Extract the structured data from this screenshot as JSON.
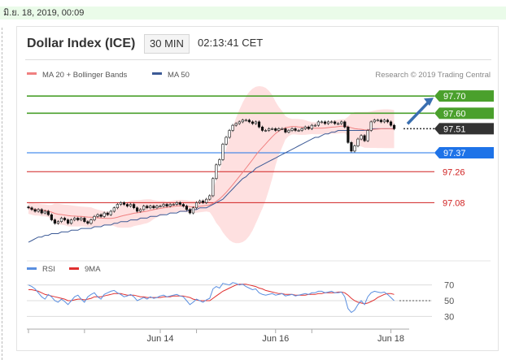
{
  "date_bar": {
    "text": "มิ.ย. 18, 2019, 00:09"
  },
  "header": {
    "title": "Dollar Index (ICE)",
    "interval": "30 MIN",
    "time": "02:13:41 CET"
  },
  "legend": {
    "ma20": "MA 20 + Bollinger Bands",
    "ma50": "MA 50",
    "credit": "Research © 2019 Trading Central"
  },
  "rsi_legend": {
    "rsi": "RSI",
    "ma": "9MA"
  },
  "colors": {
    "ma20": "#f08080",
    "ma50": "#3c5a96",
    "band": "#fdd5d5",
    "green": "#4aa02c",
    "blue": "#1e73e8",
    "red": "#d02020",
    "dark": "#333333",
    "arrow": "#3a6fb0",
    "rsi": "#5a8fe0",
    "rsi_ma": "#e03030"
  },
  "chart_data": {
    "type": "candlestick",
    "x_labels": [
      "Jun 14",
      "Jun 16",
      "Jun 18"
    ],
    "price_ylim": [
      96.77,
      97.8
    ],
    "levels": [
      {
        "label": "97.70",
        "value": 97.7,
        "kind": "resistance"
      },
      {
        "label": "97.60",
        "value": 97.6,
        "kind": "resistance"
      },
      {
        "label": "97.51",
        "value": 97.51,
        "kind": "last"
      },
      {
        "label": "97.37",
        "value": 97.37,
        "kind": "pivot"
      },
      {
        "label": "97.26",
        "value": 97.26,
        "kind": "support"
      },
      {
        "label": "97.08",
        "value": 97.08,
        "kind": "support"
      }
    ],
    "closes": [
      97.05,
      97.04,
      97.03,
      97.04,
      97.02,
      97.03,
      97.01,
      96.98,
      96.96,
      96.97,
      96.99,
      96.98,
      96.96,
      96.98,
      96.99,
      96.98,
      96.99,
      96.97,
      96.96,
      96.98,
      97.0,
      97.01,
      97.0,
      97.02,
      97.01,
      97.03,
      97.05,
      97.07,
      97.08,
      97.07,
      97.06,
      97.07,
      97.05,
      97.03,
      97.04,
      97.06,
      97.05,
      97.06,
      97.05,
      97.06,
      97.06,
      97.07,
      97.06,
      97.07,
      97.07,
      97.08,
      97.07,
      97.06,
      97.04,
      97.02,
      97.05,
      97.08,
      97.09,
      97.08,
      97.1,
      97.12,
      97.22,
      97.3,
      97.33,
      97.42,
      97.46,
      97.5,
      97.53,
      97.54,
      97.55,
      97.56,
      97.56,
      97.55,
      97.54,
      97.55,
      97.52,
      97.5,
      97.5,
      97.51,
      97.51,
      97.5,
      97.51,
      97.51,
      97.49,
      97.5,
      97.51,
      97.5,
      97.5,
      97.51,
      97.52,
      97.51,
      97.53,
      97.53,
      97.55,
      97.55,
      97.54,
      97.55,
      97.55,
      97.54,
      97.54,
      97.55,
      97.52,
      97.43,
      97.38,
      97.41,
      97.45,
      97.47,
      97.44,
      97.5,
      97.55,
      97.56,
      97.56,
      97.55,
      97.56,
      97.55,
      97.53,
      97.51
    ],
    "ma50": [
      96.85,
      96.86,
      96.87,
      96.88,
      96.88,
      96.89,
      96.89,
      96.9,
      96.9,
      96.9,
      96.91,
      96.91,
      96.91,
      96.92,
      96.92,
      96.92,
      96.93,
      96.93,
      96.93,
      96.93,
      96.94,
      96.94,
      96.94,
      96.95,
      96.95,
      96.95,
      96.96,
      96.96,
      96.97,
      96.97,
      96.97,
      96.98,
      96.98,
      96.98,
      96.99,
      96.99,
      96.99,
      97.0,
      97.0,
      97.0,
      97.01,
      97.01,
      97.01,
      97.02,
      97.02,
      97.02,
      97.03,
      97.03,
      97.03,
      97.04,
      97.04,
      97.04,
      97.05,
      97.05,
      97.05,
      97.06,
      97.07,
      97.08,
      97.09,
      97.1,
      97.12,
      97.14,
      97.16,
      97.18,
      97.2,
      97.22,
      97.23,
      97.25,
      97.26,
      97.28,
      97.29,
      97.3,
      97.31,
      97.32,
      97.33,
      97.34,
      97.35,
      97.36,
      97.37,
      97.38,
      97.39,
      97.4,
      97.41,
      97.42,
      97.43,
      97.44,
      97.45,
      97.46,
      97.46,
      97.47,
      97.48,
      97.48,
      97.49,
      97.49,
      97.5,
      97.5,
      97.5,
      97.5,
      97.5,
      97.5,
      97.5,
      97.5,
      97.5,
      97.5,
      97.51,
      97.51,
      97.51,
      97.51,
      97.51,
      97.51,
      97.51,
      97.51
    ],
    "rsi": [
      70,
      68,
      65,
      60,
      55,
      52,
      58,
      55,
      50,
      48,
      52,
      49,
      45,
      50,
      55,
      57,
      52,
      48,
      55,
      58,
      60,
      55,
      52,
      58,
      60,
      62,
      63,
      60,
      58,
      55,
      56,
      58,
      55,
      50,
      52,
      54,
      52,
      55,
      53,
      54,
      56,
      57,
      55,
      56,
      57,
      58,
      56,
      55,
      50,
      45,
      48,
      52,
      50,
      48,
      51,
      53,
      65,
      68,
      66,
      72,
      71,
      70,
      73,
      72,
      70,
      71,
      68,
      66,
      64,
      65,
      60,
      58,
      57,
      58,
      59,
      57,
      58,
      59,
      56,
      57,
      58,
      56,
      57,
      58,
      59,
      58,
      60,
      60,
      62,
      62,
      60,
      61,
      62,
      60,
      60,
      61,
      55,
      40,
      35,
      38,
      45,
      50,
      45,
      55,
      60,
      62,
      61,
      60,
      61,
      58,
      54,
      50
    ],
    "rsi_ma": [
      64,
      64,
      63,
      62,
      60,
      58,
      57,
      56,
      55,
      54,
      53,
      52,
      50,
      50,
      51,
      52,
      52,
      51,
      52,
      53,
      55,
      55,
      55,
      56,
      57,
      58,
      59,
      59,
      59,
      58,
      57,
      57,
      57,
      56,
      55,
      55,
      54,
      54,
      54,
      54,
      54,
      55,
      55,
      55,
      56,
      56,
      56,
      56,
      55,
      54,
      52,
      51,
      50,
      50,
      50,
      50,
      53,
      56,
      59,
      62,
      64,
      66,
      68,
      70,
      71,
      71,
      71,
      70,
      69,
      68,
      66,
      65,
      63,
      62,
      61,
      60,
      59,
      59,
      58,
      58,
      58,
      57,
      57,
      57,
      57,
      58,
      58,
      58,
      59,
      59,
      60,
      60,
      60,
      60,
      61,
      61,
      60,
      57,
      53,
      50,
      48,
      47,
      46,
      47,
      49,
      51,
      54,
      56,
      58,
      59,
      59,
      58
    ],
    "rsi_levels": [
      70,
      50,
      30
    ]
  }
}
